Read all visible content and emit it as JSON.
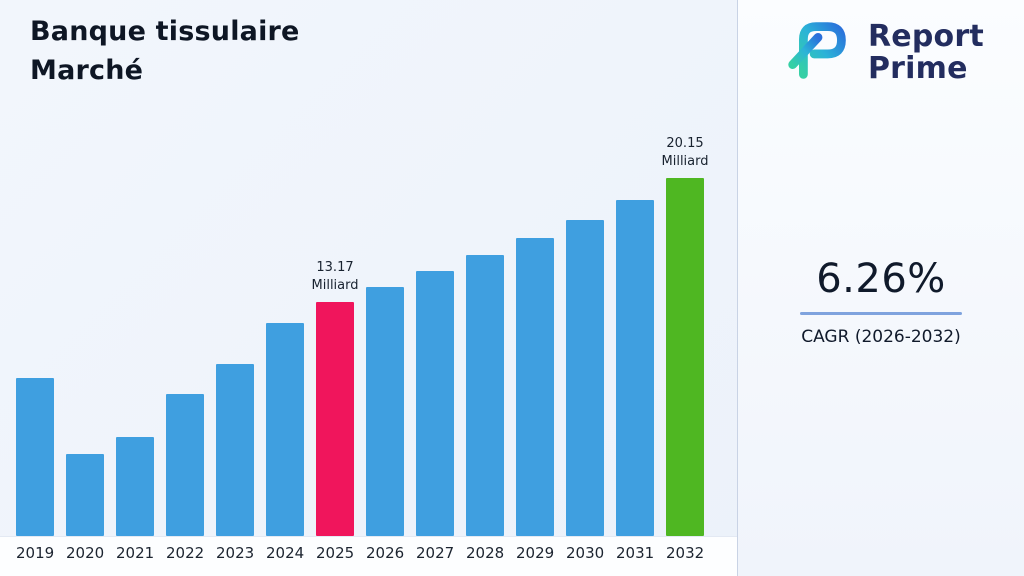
{
  "title": {
    "line1": "Banque tissulaire",
    "line2": "Marché"
  },
  "logo": {
    "name_top": "Report",
    "name_bottom": "Prime"
  },
  "cagr": {
    "value": "6.26%",
    "label": "CAGR (2026-2032)"
  },
  "chart_data": {
    "type": "bar",
    "title": "Banque tissulaire Marché",
    "categories": [
      "2019",
      "2020",
      "2021",
      "2022",
      "2023",
      "2024",
      "2025",
      "2026",
      "2027",
      "2028",
      "2029",
      "2030",
      "2031",
      "2032"
    ],
    "values": [
      8.9,
      4.6,
      5.6,
      8.0,
      9.7,
      12.0,
      13.17,
      14.0,
      14.9,
      15.8,
      16.8,
      17.8,
      18.9,
      20.15
    ],
    "unit": "Milliard",
    "xlabel": "",
    "ylabel": "",
    "ylim": [
      0,
      21
    ],
    "grid": false,
    "legend": false,
    "bar_colors": {
      "default": "#3f9fe0",
      "2025": "#f0155c",
      "2032": "#4fb722"
    },
    "annotations": [
      {
        "category": "2025",
        "lines": [
          "13.17",
          "Milliard"
        ]
      },
      {
        "category": "2032",
        "lines": [
          "20.15",
          "Milliard"
        ]
      }
    ]
  },
  "colors": {
    "background": "#eef3fb",
    "bottom_strip": "#fdfeff",
    "divider": "#c9d3e5",
    "cagr_underline": "#7fa3de",
    "logo_navy": "#232d5f",
    "logo_gradient_start": "#35d0a5",
    "logo_gradient_mid": "#2bb3d8",
    "logo_gradient_end": "#2a6fdb",
    "text_dark": "#101a2b"
  }
}
